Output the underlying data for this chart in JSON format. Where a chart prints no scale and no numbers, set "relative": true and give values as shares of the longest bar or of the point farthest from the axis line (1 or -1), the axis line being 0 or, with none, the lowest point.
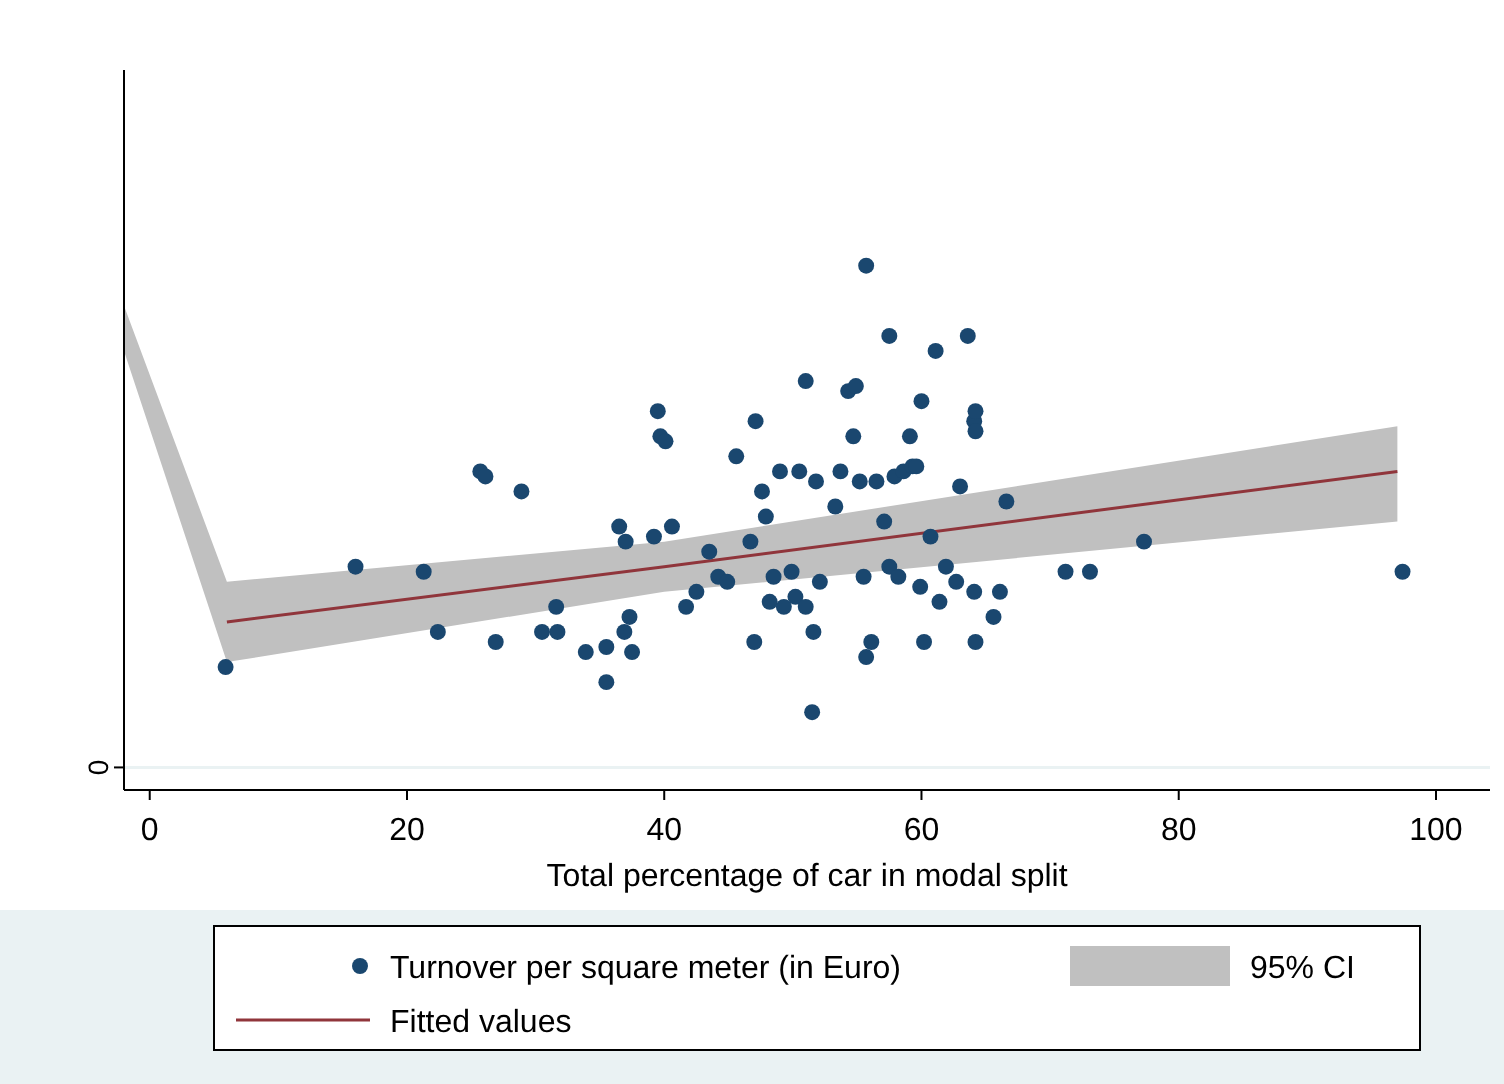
{
  "chart_data": {
    "type": "scatter",
    "relative": true,
    "xlabel": "Total percentage of car in modal split",
    "xlim": [
      -2,
      104.2
    ],
    "xticks": [
      0,
      20,
      40,
      60,
      80,
      100
    ],
    "legend": "bottom",
    "marker": "circle",
    "annotations": [
      "0",
      "95% CI"
    ],
    "series": [
      {
        "name": "Turnover per square meter (in Euro)",
        "color": "#1a476f",
        "x": [
          5.9,
          16.0,
          21.3,
          22.4,
          25.7,
          26.1,
          28.9,
          26.9,
          30.5,
          31.7,
          31.6,
          33.9,
          35.5,
          35.5,
          36.9,
          37.5,
          37.3,
          36.5,
          37.0,
          39.5,
          39.7,
          40.1,
          39.2,
          40.6,
          41.7,
          42.5,
          43.5,
          44.2,
          44.9,
          45.6,
          47.0,
          47.1,
          47.6,
          47.9,
          48.2,
          48.5,
          49.0,
          49.3,
          49.9,
          50.2,
          50.5,
          51.0,
          51.5,
          51.0,
          51.6,
          52.1,
          53.3,
          53.7,
          54.3,
          54.7,
          54.9,
          55.2,
          55.7,
          55.5,
          56.1,
          56.5,
          57.1,
          57.5,
          57.9,
          58.2,
          58.6,
          59.1,
          59.3,
          59.6,
          59.9,
          60.0,
          60.2,
          60.7,
          61.1,
          61.4,
          61.9,
          62.7,
          63.0,
          63.6,
          64.1,
          64.2,
          64.2,
          64.1,
          64.2,
          65.6,
          66.1,
          66.6,
          71.2,
          73.1,
          77.3,
          97.4,
          55.7,
          57.5,
          51.8,
          46.7
        ],
        "values": [
          0.2,
          0.4,
          0.39,
          0.27,
          0.59,
          0.58,
          0.55,
          0.25,
          0.27,
          0.27,
          0.32,
          0.23,
          0.24,
          0.17,
          0.27,
          0.23,
          0.3,
          0.48,
          0.45,
          0.71,
          0.66,
          0.65,
          0.46,
          0.48,
          0.32,
          0.35,
          0.43,
          0.38,
          0.37,
          0.62,
          0.25,
          0.69,
          0.55,
          0.5,
          0.33,
          0.38,
          0.59,
          0.32,
          0.39,
          0.34,
          0.59,
          0.32,
          0.11,
          0.77,
          0.27,
          0.37,
          0.52,
          0.59,
          0.75,
          0.66,
          0.76,
          0.57,
          0.22,
          0.38,
          0.25,
          0.57,
          0.49,
          0.4,
          0.58,
          0.38,
          0.59,
          0.66,
          0.6,
          0.6,
          0.36,
          0.73,
          0.25,
          0.46,
          0.83,
          0.33,
          0.4,
          0.37,
          0.56,
          0.86,
          0.69,
          0.71,
          0.67,
          0.35,
          0.25,
          0.3,
          0.35,
          0.53,
          0.39,
          0.39,
          0.45,
          0.39,
          1.0,
          0.86,
          0.57,
          0.45
        ]
      },
      {
        "type": "line",
        "name": "Fitted values",
        "color": "#90353b",
        "marker": "none",
        "x": [
          -2,
          6,
          40,
          97
        ],
        "values": [
          null,
          0.29,
          0.4,
          0.59
        ],
        "lower": [
          0.83,
          0.21,
          0.35,
          0.49
        ],
        "upper": [
          0.92,
          0.37,
          0.45,
          0.68
        ]
      }
    ]
  }
}
